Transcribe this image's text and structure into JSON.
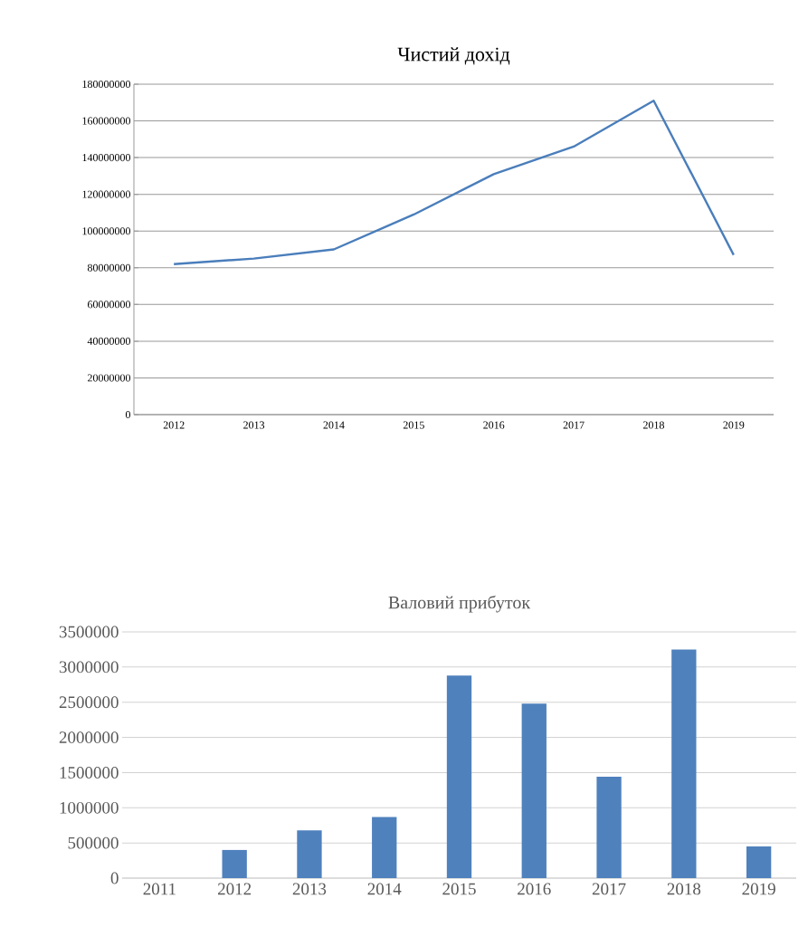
{
  "chart_data": [
    {
      "type": "line",
      "title": "Чистий дохід",
      "categories": [
        "2012",
        "2013",
        "2014",
        "2015",
        "2016",
        "2017",
        "2018",
        "2019"
      ],
      "values": [
        82000000,
        85000000,
        90000000,
        109000000,
        131000000,
        146000000,
        171000000,
        87000000
      ],
      "color": "#4a7ebb",
      "ylim": [
        0,
        180000000
      ],
      "yticks": [
        0,
        20000000,
        40000000,
        60000000,
        80000000,
        100000000,
        120000000,
        140000000,
        160000000,
        180000000
      ],
      "grid": "y"
    },
    {
      "type": "bar",
      "title": "Валовий прибуток",
      "categories": [
        "2011",
        "2012",
        "2013",
        "2014",
        "2015",
        "2016",
        "2017",
        "2018",
        "2019"
      ],
      "values": [
        null,
        400000,
        680000,
        870000,
        2880000,
        2480000,
        1440000,
        3250000,
        450000
      ],
      "color": "#4f81bd",
      "ylim": [
        0,
        3500000
      ],
      "yticks": [
        0,
        500000,
        1000000,
        1500000,
        2000000,
        2500000,
        3000000,
        3500000
      ],
      "grid": "y"
    }
  ]
}
